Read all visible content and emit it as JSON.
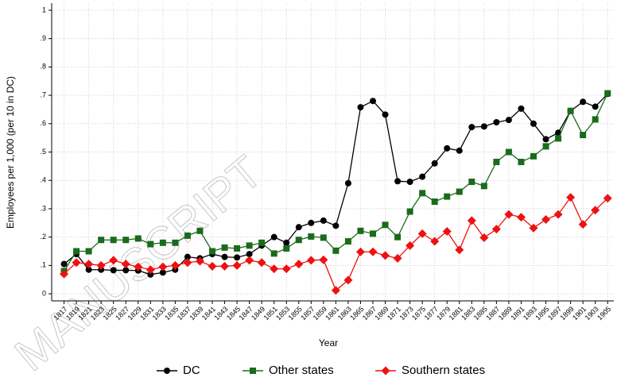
{
  "watermark": "MANUSCRIPT",
  "chart_data": {
    "type": "line",
    "xlabel": "Year",
    "ylabel": "Employees per 1,000 (per 10 in DC)",
    "x": [
      1817,
      1819,
      1821,
      1823,
      1825,
      1827,
      1829,
      1831,
      1833,
      1835,
      1837,
      1839,
      1841,
      1843,
      1845,
      1847,
      1849,
      1851,
      1853,
      1855,
      1857,
      1859,
      1861,
      1863,
      1865,
      1867,
      1869,
      1871,
      1873,
      1875,
      1877,
      1879,
      1881,
      1883,
      1885,
      1887,
      1889,
      1891,
      1893,
      1895,
      1897,
      1899,
      1901,
      1903,
      1905
    ],
    "xlim": [
      1815,
      1906
    ],
    "xticks": [
      1817,
      1819,
      1821,
      1823,
      1825,
      1827,
      1829,
      1831,
      1833,
      1835,
      1837,
      1839,
      1841,
      1843,
      1845,
      1847,
      1849,
      1851,
      1853,
      1855,
      1857,
      1859,
      1861,
      1863,
      1865,
      1867,
      1869,
      1871,
      1873,
      1875,
      1877,
      1879,
      1881,
      1883,
      1885,
      1887,
      1889,
      1891,
      1893,
      1895,
      1897,
      1899,
      1901,
      1903,
      1905
    ],
    "ylim": [
      -0.025,
      1.025
    ],
    "yticks": [
      0,
      {
        "value": 0.1,
        "label": ".1"
      },
      {
        "value": 0.2,
        "label": ".2"
      },
      {
        "value": 0.3,
        "label": ".3"
      },
      {
        "value": 0.4,
        "label": ".4"
      },
      {
        "value": 0.5,
        "label": ".5"
      },
      {
        "value": 0.6,
        "label": ".6"
      },
      {
        "value": 0.7,
        "label": ".7"
      },
      {
        "value": 0.8,
        "label": ".8"
      },
      {
        "value": 0.9,
        "label": ".9"
      },
      1
    ],
    "grid": true,
    "legend": "bottom",
    "series": [
      {
        "name": "DC",
        "color": "#000000",
        "marker": "circle",
        "values": [
          0.105,
          0.14,
          0.085,
          0.085,
          0.083,
          0.083,
          0.082,
          0.068,
          0.075,
          0.085,
          0.13,
          0.125,
          0.14,
          0.13,
          0.128,
          0.14,
          0.17,
          0.2,
          0.18,
          0.235,
          0.25,
          0.258,
          0.24,
          0.39,
          0.658,
          0.68,
          0.632,
          0.397,
          0.395,
          0.413,
          0.46,
          0.513,
          0.505,
          0.588,
          0.59,
          0.605,
          0.613,
          0.653,
          0.6,
          0.545,
          0.568,
          0.645,
          0.677,
          0.66,
          0.705
        ]
      },
      {
        "name": "Other states",
        "color": "#1a6b1a",
        "marker": "square",
        "values": [
          0.08,
          0.15,
          0.15,
          0.19,
          0.19,
          0.19,
          0.195,
          0.175,
          0.18,
          0.18,
          0.205,
          0.222,
          0.15,
          0.163,
          0.16,
          0.17,
          0.18,
          0.142,
          0.16,
          0.19,
          0.202,
          0.198,
          0.152,
          0.185,
          0.222,
          0.212,
          0.243,
          0.2,
          0.29,
          0.355,
          0.325,
          0.343,
          0.36,
          0.395,
          0.38,
          0.465,
          0.5,
          0.465,
          0.485,
          0.52,
          0.548,
          0.645,
          0.56,
          0.615,
          0.707
        ]
      },
      {
        "name": "Southern states",
        "color": "#ee1111",
        "marker": "diamond",
        "values": [
          0.07,
          0.11,
          0.105,
          0.1,
          0.118,
          0.105,
          0.095,
          0.085,
          0.095,
          0.1,
          0.11,
          0.115,
          0.097,
          0.097,
          0.1,
          0.118,
          0.11,
          0.088,
          0.088,
          0.105,
          0.118,
          0.12,
          0.012,
          0.048,
          0.148,
          0.148,
          0.135,
          0.125,
          0.17,
          0.212,
          0.185,
          0.22,
          0.155,
          0.258,
          0.198,
          0.228,
          0.28,
          0.27,
          0.232,
          0.262,
          0.28,
          0.34,
          0.245,
          0.295,
          0.337
        ]
      }
    ]
  }
}
